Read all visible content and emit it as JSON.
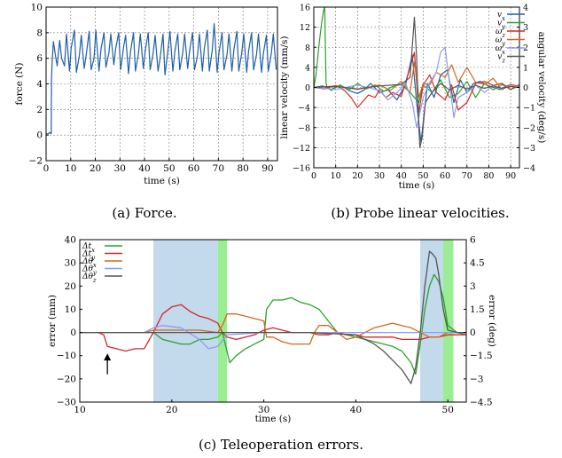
{
  "captions": {
    "a": "(a) Force.",
    "b": "(b) Probe linear velocities.",
    "c": "(c) Teleoperation errors."
  },
  "chart_data": [
    {
      "type": "line",
      "id": "force",
      "xlabel": "time (s)",
      "ylabel": "force (N)",
      "xlim": [
        0,
        94
      ],
      "ylim": [
        -2,
        10
      ],
      "xticks": [
        "0",
        "10",
        "20",
        "30",
        "40",
        "50",
        "60",
        "70",
        "80",
        "90"
      ],
      "yticks": [
        "−2",
        "0",
        "2",
        "4",
        "6",
        "8",
        "10"
      ],
      "grid": true,
      "series": [
        {
          "color": "#1f5fa6",
          "x": [
            0,
            0.8,
            1.5,
            2.1,
            2.2,
            2.5,
            3,
            3.8,
            4.5,
            5.5,
            6.3,
            7.5,
            8.3,
            9.5,
            10.2,
            11.5,
            12.3,
            13.5,
            14.3,
            15.5,
            16.3,
            17.5,
            18.3,
            19.5,
            20.2,
            21.5,
            22.3,
            23.5,
            24.3,
            25.5,
            26.3,
            27.5,
            28.3,
            29.5,
            30.3,
            31.5,
            32.3,
            33.5,
            34.3,
            35.5,
            36.3,
            37.5,
            38.3,
            39.5,
            40.3,
            41.5,
            42.3,
            43.5,
            44.3,
            45.5,
            46.3,
            47.5,
            48.3,
            49.5,
            50.3,
            51.5,
            52.3,
            53.5,
            54.3,
            55.5,
            56.3,
            57.5,
            58.3,
            59.5,
            60.3,
            61.5,
            62.3,
            63.5,
            64.3,
            65.5,
            66.3,
            67.5,
            68.3,
            69.5,
            70.3,
            71.5,
            72.3,
            73.5,
            74.3,
            75.5,
            76.3,
            77.5,
            78.3,
            79.5,
            80.3,
            81.5,
            82.3,
            83.5,
            84.3,
            85.5,
            86.3,
            87.5,
            88.3,
            89.5,
            90.3,
            91.5,
            92.3,
            93.5
          ],
          "y": [
            0.1,
            0.1,
            0.2,
            0.1,
            4.3,
            5.8,
            7.3,
            6.2,
            5.4,
            7.4,
            6.0,
            5.4,
            7.9,
            5.0,
            6.8,
            8.2,
            4.9,
            6.2,
            7.8,
            5.2,
            6.3,
            8.1,
            5.1,
            6.0,
            8.2,
            5.0,
            6.7,
            8.0,
            5.3,
            6.4,
            7.9,
            5.5,
            6.8,
            8.0,
            5.1,
            6.9,
            7.8,
            4.8,
            6.5,
            8.0,
            5.0,
            6.3,
            7.9,
            5.2,
            6.6,
            8.0,
            5.1,
            6.4,
            7.8,
            5.0,
            6.0,
            7.9,
            4.7,
            6.6,
            8.1,
            5.0,
            6.5,
            7.9,
            5.1,
            6.4,
            7.9,
            5.2,
            6.6,
            8.0,
            5.1,
            6.2,
            7.9,
            5.0,
            6.8,
            8.2,
            5.0,
            6.6,
            8.7,
            4.9,
            6.5,
            8.0,
            5.1,
            6.3,
            7.9,
            5.0,
            6.7,
            8.1,
            5.0,
            6.4,
            7.9,
            4.9,
            6.6,
            8.0,
            5.1,
            6.3,
            7.9,
            4.9,
            6.4,
            7.8,
            5.0,
            6.4,
            7.9,
            5.1
          ]
        }
      ]
    },
    {
      "type": "line",
      "id": "velocities",
      "xlabel": "time (s)",
      "ylabel": "linear velocity (mm/s)",
      "y2label": "angular velocity (deg/s)",
      "xlim": [
        0,
        94
      ],
      "ylim": [
        -16,
        16
      ],
      "y2lim": [
        -4,
        4
      ],
      "xticks": [
        "0",
        "10",
        "20",
        "30",
        "40",
        "50",
        "60",
        "70",
        "80",
        "90"
      ],
      "yticks": [
        "−16",
        "−12",
        "−8",
        "−4",
        "0",
        "4",
        "8",
        "12",
        "16"
      ],
      "y2ticks": [
        "−4",
        "−3",
        "−2",
        "−1",
        "0",
        "1",
        "2",
        "3",
        "4"
      ],
      "grid": true,
      "legend_position": "top-right",
      "series": [
        {
          "name": "v_x",
          "color": "#1f5fa6",
          "axis": "left",
          "x": [
            0,
            4,
            8,
            12,
            16,
            20,
            23,
            26,
            30,
            34,
            38,
            42,
            45,
            47,
            49,
            52,
            55,
            58,
            61,
            64,
            67,
            70,
            73,
            76,
            80,
            85,
            90,
            94
          ],
          "y": [
            0,
            0.3,
            -0.4,
            0.5,
            -0.6,
            -1.2,
            -0.5,
            0.8,
            -1.0,
            -0.5,
            -2.5,
            0.6,
            6.5,
            -3,
            -11,
            0.8,
            -2,
            2.5,
            3.5,
            -3,
            1.5,
            -1,
            0.8,
            1.2,
            0.3,
            -0.4,
            0.6,
            0.2
          ]
        },
        {
          "name": "v_y",
          "color": "#2ca02c",
          "axis": "left",
          "x": [
            0,
            1,
            2.5,
            3.5,
            4.5,
            5,
            5.6,
            6,
            8,
            12,
            16,
            20,
            24,
            28,
            32,
            36,
            40,
            44,
            46,
            48,
            50,
            54,
            58,
            62,
            66,
            70,
            74,
            78,
            82,
            86,
            90,
            94
          ],
          "y": [
            0,
            2.5,
            9,
            12.5,
            15.5,
            16,
            1,
            0,
            -0.6,
            0.5,
            -0.5,
            0.8,
            -0.3,
            0.5,
            -0.8,
            0.2,
            0.6,
            -1,
            -2,
            -3,
            0.5,
            -1,
            1.5,
            -2,
            -1.2,
            1.2,
            -2,
            0.8,
            -0.5,
            0.6,
            -0.4,
            0.3
          ]
        },
        {
          "name": "ω_z",
          "color": "#d62728",
          "axis": "left",
          "x": [
            0,
            5,
            10,
            14,
            17,
            20,
            22,
            25,
            28,
            30,
            33,
            36,
            40,
            44,
            46,
            48,
            50,
            53,
            56,
            60,
            63,
            66,
            70,
            74,
            78,
            82,
            86,
            90,
            94
          ],
          "y": [
            0,
            -0.3,
            0.4,
            -0.6,
            -2,
            -4,
            -3,
            -1.5,
            -2,
            -0.5,
            -2,
            -1,
            -1.8,
            4,
            7,
            -5,
            0.5,
            2.5,
            -1,
            -2.5,
            0.5,
            -4.5,
            -3,
            0.8,
            1.2,
            0.4,
            0.8,
            -0.4,
            0.6
          ]
        },
        {
          "name": "ω_y",
          "color": "#d2691e",
          "axis": "left",
          "x": [
            0,
            10,
            20,
            30,
            35,
            40,
            44,
            46,
            48,
            50,
            53,
            56,
            60,
            63,
            66,
            70,
            74,
            78,
            82,
            86,
            90,
            94
          ],
          "y": [
            0,
            0.3,
            -0.4,
            0.5,
            -0.6,
            1.2,
            -1,
            5,
            -2,
            0.8,
            0.5,
            3,
            2,
            4.5,
            1,
            4,
            1,
            0.6,
            1.8,
            -0.5,
            0.6,
            0.2
          ]
        },
        {
          "name": "ω_x",
          "color": "#8e9cf2",
          "axis": "left",
          "x": [
            0,
            10,
            20,
            30,
            34,
            38,
            42,
            45,
            47,
            50,
            53,
            56,
            58,
            60,
            62,
            64,
            66,
            70,
            74,
            78,
            82,
            86,
            90,
            94
          ],
          "y": [
            0,
            -0.4,
            0.5,
            -0.6,
            -2.5,
            -1,
            0.8,
            -3,
            -8,
            -2,
            1,
            3,
            7,
            8,
            1,
            -6,
            -2,
            -1,
            0.5,
            -1,
            0.4,
            -0.3,
            0.3,
            0.1
          ]
        },
        {
          "name": "v_z",
          "color": "#555555",
          "axis": "left",
          "x": [
            0,
            10,
            20,
            30,
            40,
            44,
            46,
            47,
            48,
            48.5,
            49.5,
            51,
            54,
            58,
            62,
            66,
            70,
            74,
            78,
            82,
            86,
            90,
            94
          ],
          "y": [
            0,
            0.2,
            -0.3,
            0.3,
            0.6,
            2,
            14,
            6,
            -8,
            -12,
            -10,
            -3,
            -1,
            0.8,
            -0.5,
            0.4,
            -0.3,
            0.4,
            -0.2,
            0.3,
            -0.2,
            0.2,
            0
          ]
        }
      ]
    },
    {
      "type": "line",
      "id": "errors",
      "xlabel": "time (s)",
      "ylabel": "error (mm)",
      "y2label": "error (deg)",
      "xlim": [
        10,
        52
      ],
      "ylim": [
        -30,
        40
      ],
      "y2lim": [
        -4.5,
        6
      ],
      "xticks": [
        "10",
        "20",
        "30",
        "40",
        "50"
      ],
      "yticks": [
        "−30",
        "−20",
        "−10",
        "0",
        "10",
        "20",
        "30",
        "40"
      ],
      "y2ticks": [
        "−4.5",
        "−3",
        "−1.5",
        "0",
        "1.5",
        "3",
        "4.5",
        "6"
      ],
      "grid": false,
      "legend_position": "top-left",
      "shaded_regions": [
        {
          "x": [
            18,
            25
          ],
          "color": "#c3d9ec"
        },
        {
          "x": [
            25,
            26
          ],
          "color": "#98ee90"
        },
        {
          "x": [
            47,
            49.5
          ],
          "color": "#c3d9ec"
        },
        {
          "x": [
            49.5,
            50.6
          ],
          "color": "#98ee90"
        }
      ],
      "annotation": {
        "type": "arrow",
        "x": 13,
        "y_from": -18,
        "y_to": -9
      },
      "series": [
        {
          "name": "Δt_x",
          "color": "#2ca02c",
          "axis": "left",
          "x": [
            10,
            12,
            14,
            16,
            18,
            19,
            20,
            21,
            22,
            23,
            24,
            25,
            25.5,
            26.3,
            27,
            28,
            29,
            30,
            30.3,
            31,
            32,
            33,
            34,
            35,
            36,
            37,
            38,
            39,
            40,
            41,
            42,
            43,
            44,
            45,
            46,
            46.5,
            47,
            47.5,
            48,
            48.5,
            49,
            49.5,
            50,
            51,
            52
          ],
          "y": [
            0,
            0,
            0,
            0,
            0,
            -3,
            -4,
            -5,
            -5,
            -3,
            -3,
            -2,
            0,
            -13,
            -10,
            -7,
            -5,
            -3,
            10,
            14,
            14,
            15,
            13,
            12,
            10,
            5,
            0,
            -1,
            -2,
            -3,
            -4,
            -5,
            -6,
            -8,
            -13,
            -18,
            -5,
            10,
            20,
            25,
            22,
            15,
            3,
            0,
            -1
          ]
        },
        {
          "name": "Δt_y",
          "color": "#d62728",
          "axis": "left",
          "x": [
            10,
            12,
            12.6,
            13,
            14,
            15,
            16,
            17,
            18,
            19,
            20,
            21,
            22,
            23,
            24,
            25,
            25.5,
            26,
            27,
            28,
            29,
            30,
            31,
            32,
            33,
            34,
            35,
            36,
            37,
            38,
            39,
            40,
            41,
            42,
            43,
            44,
            45,
            46,
            47,
            48,
            49,
            50,
            51,
            52
          ],
          "y": [
            0,
            0,
            -1,
            -6,
            -7,
            -8,
            -7,
            -7,
            0,
            8,
            11,
            12,
            9,
            7,
            6,
            4,
            0,
            -2,
            -3,
            -2,
            -1,
            1,
            2,
            1,
            0,
            0,
            0,
            -1,
            -1,
            0,
            -1,
            -1,
            -2,
            -2,
            -2,
            -2,
            -3,
            -3,
            -3,
            -2,
            -2,
            -1,
            -1,
            -1
          ]
        },
        {
          "name": "Δθ_x",
          "color": "#d2691e",
          "axis": "left",
          "x": [
            10,
            17,
            18,
            21,
            23,
            25,
            25.5,
            26,
            27,
            28,
            29,
            30,
            30.3,
            31,
            32,
            33,
            34,
            35,
            35.5,
            36,
            37,
            38,
            39,
            40,
            41,
            42,
            43,
            44,
            45,
            46,
            47,
            48,
            49,
            50,
            51,
            52
          ],
          "y": [
            0,
            0,
            1,
            1,
            1,
            0,
            3,
            8,
            8,
            7,
            6,
            5,
            -2,
            -2,
            -4,
            -5,
            -5,
            -5,
            0,
            3,
            3,
            0,
            -3,
            -2,
            0,
            2,
            3,
            4,
            3,
            2,
            0,
            -2,
            -2,
            0,
            0,
            0
          ]
        },
        {
          "name": "Δθ_y",
          "color": "#8e9cf2",
          "axis": "left",
          "x": [
            10,
            17,
            18,
            19,
            21,
            23,
            24,
            25,
            26,
            30,
            35,
            40,
            45,
            50,
            52
          ],
          "y": [
            0,
            0,
            2,
            3,
            2,
            -3,
            -7,
            -6,
            -1,
            0,
            0,
            0,
            0,
            0,
            0
          ]
        },
        {
          "name": "Δθ_z",
          "color": "#555555",
          "axis": "left",
          "x": [
            10,
            20,
            25,
            30,
            35,
            40,
            42,
            43,
            44,
            45,
            46,
            46.5,
            47,
            47.5,
            48,
            48.3,
            48.7,
            49,
            49.5,
            50,
            51,
            52
          ],
          "y": [
            0,
            0,
            0,
            0,
            0,
            -1,
            -5,
            -8,
            -12,
            -16,
            -22,
            -15,
            0,
            20,
            35,
            34,
            32,
            25,
            10,
            1,
            0,
            0
          ]
        }
      ]
    }
  ]
}
